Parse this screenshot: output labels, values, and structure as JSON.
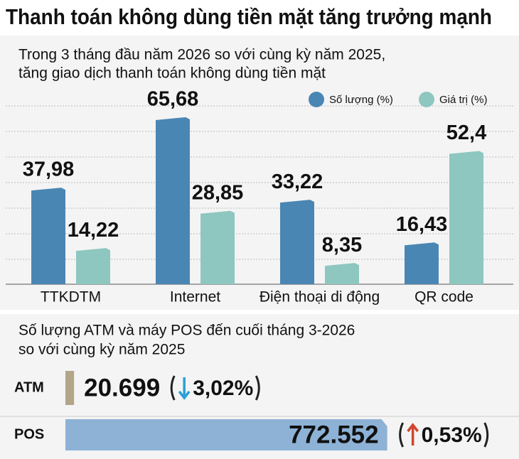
{
  "chart_data": [
    {
      "type": "bar",
      "title": "Thanh toán không dùng tiền mặt tăng trưởng mạnh",
      "subtitle": [
        "Trong 3 tháng đầu năm 2026 so với cùng kỳ năm 2025,",
        "tăng giao dịch thanh toán không dùng tiền mặt"
      ],
      "categories": [
        "TTKDTM",
        "Internet",
        "Điện thoại di động",
        "QR code"
      ],
      "series": [
        {
          "name": "Số lượng (%)",
          "color": "#4a86b3",
          "label_color": "#111111",
          "values": [
            37.98,
            65.68,
            33.22,
            16.43
          ],
          "value_labels": [
            "37,98",
            "65,68",
            "33,22",
            "16,43"
          ]
        },
        {
          "name": "Giá trị (%)",
          "color": "#8ec6c0",
          "label_color": "#8a8a8a",
          "values": [
            14.22,
            28.85,
            8.35,
            52.4
          ],
          "value_labels": [
            "14,22",
            "28,85",
            "8,35",
            "52,4"
          ]
        }
      ],
      "ylim": [
        0,
        70
      ]
    },
    {
      "type": "hbar",
      "subtitle": [
        "Số lượng ATM và máy POS đến cuối tháng 3-2026",
        "so với cùng kỳ năm 2025"
      ],
      "categories": [
        "ATM",
        "POS"
      ],
      "values": [
        20699,
        772552
      ],
      "value_labels": [
        "20.699",
        "772.552"
      ],
      "colors": [
        "#b3a588",
        "#8db2d6"
      ],
      "xlim": [
        0,
        780000
      ],
      "changes": [
        {
          "value": 3.02,
          "label": "3,02%",
          "direction": "down",
          "color": "#2a9fd8"
        },
        {
          "value": 0.53,
          "label": "0,53%",
          "direction": "up",
          "color": "#d0452c"
        }
      ]
    }
  ]
}
